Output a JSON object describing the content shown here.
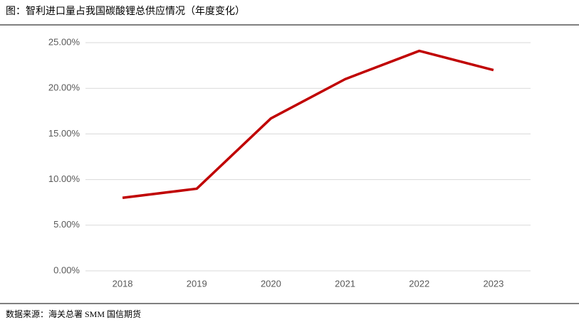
{
  "chart_data": {
    "type": "line",
    "title": "图：智利进口量占我国碳酸锂总供应情况（年度变化）",
    "source": "数据来源：海关总署 SMM 国信期货",
    "categories": [
      "2018",
      "2019",
      "2020",
      "2021",
      "2022",
      "2023"
    ],
    "series": [
      {
        "color": "#c00000",
        "values": [
          8.0,
          9.0,
          16.7,
          21.0,
          24.1,
          22.0
        ]
      }
    ],
    "ylim": [
      0,
      25
    ],
    "yticks": [
      {
        "value": 0,
        "label": "0.00%"
      },
      {
        "value": 5,
        "label": "5.00%"
      },
      {
        "value": 10,
        "label": "10.00%"
      },
      {
        "value": 15,
        "label": "15.00%"
      },
      {
        "value": 20,
        "label": "20.00%"
      },
      {
        "value": 25,
        "label": "25.00%"
      }
    ],
    "grid": true
  }
}
